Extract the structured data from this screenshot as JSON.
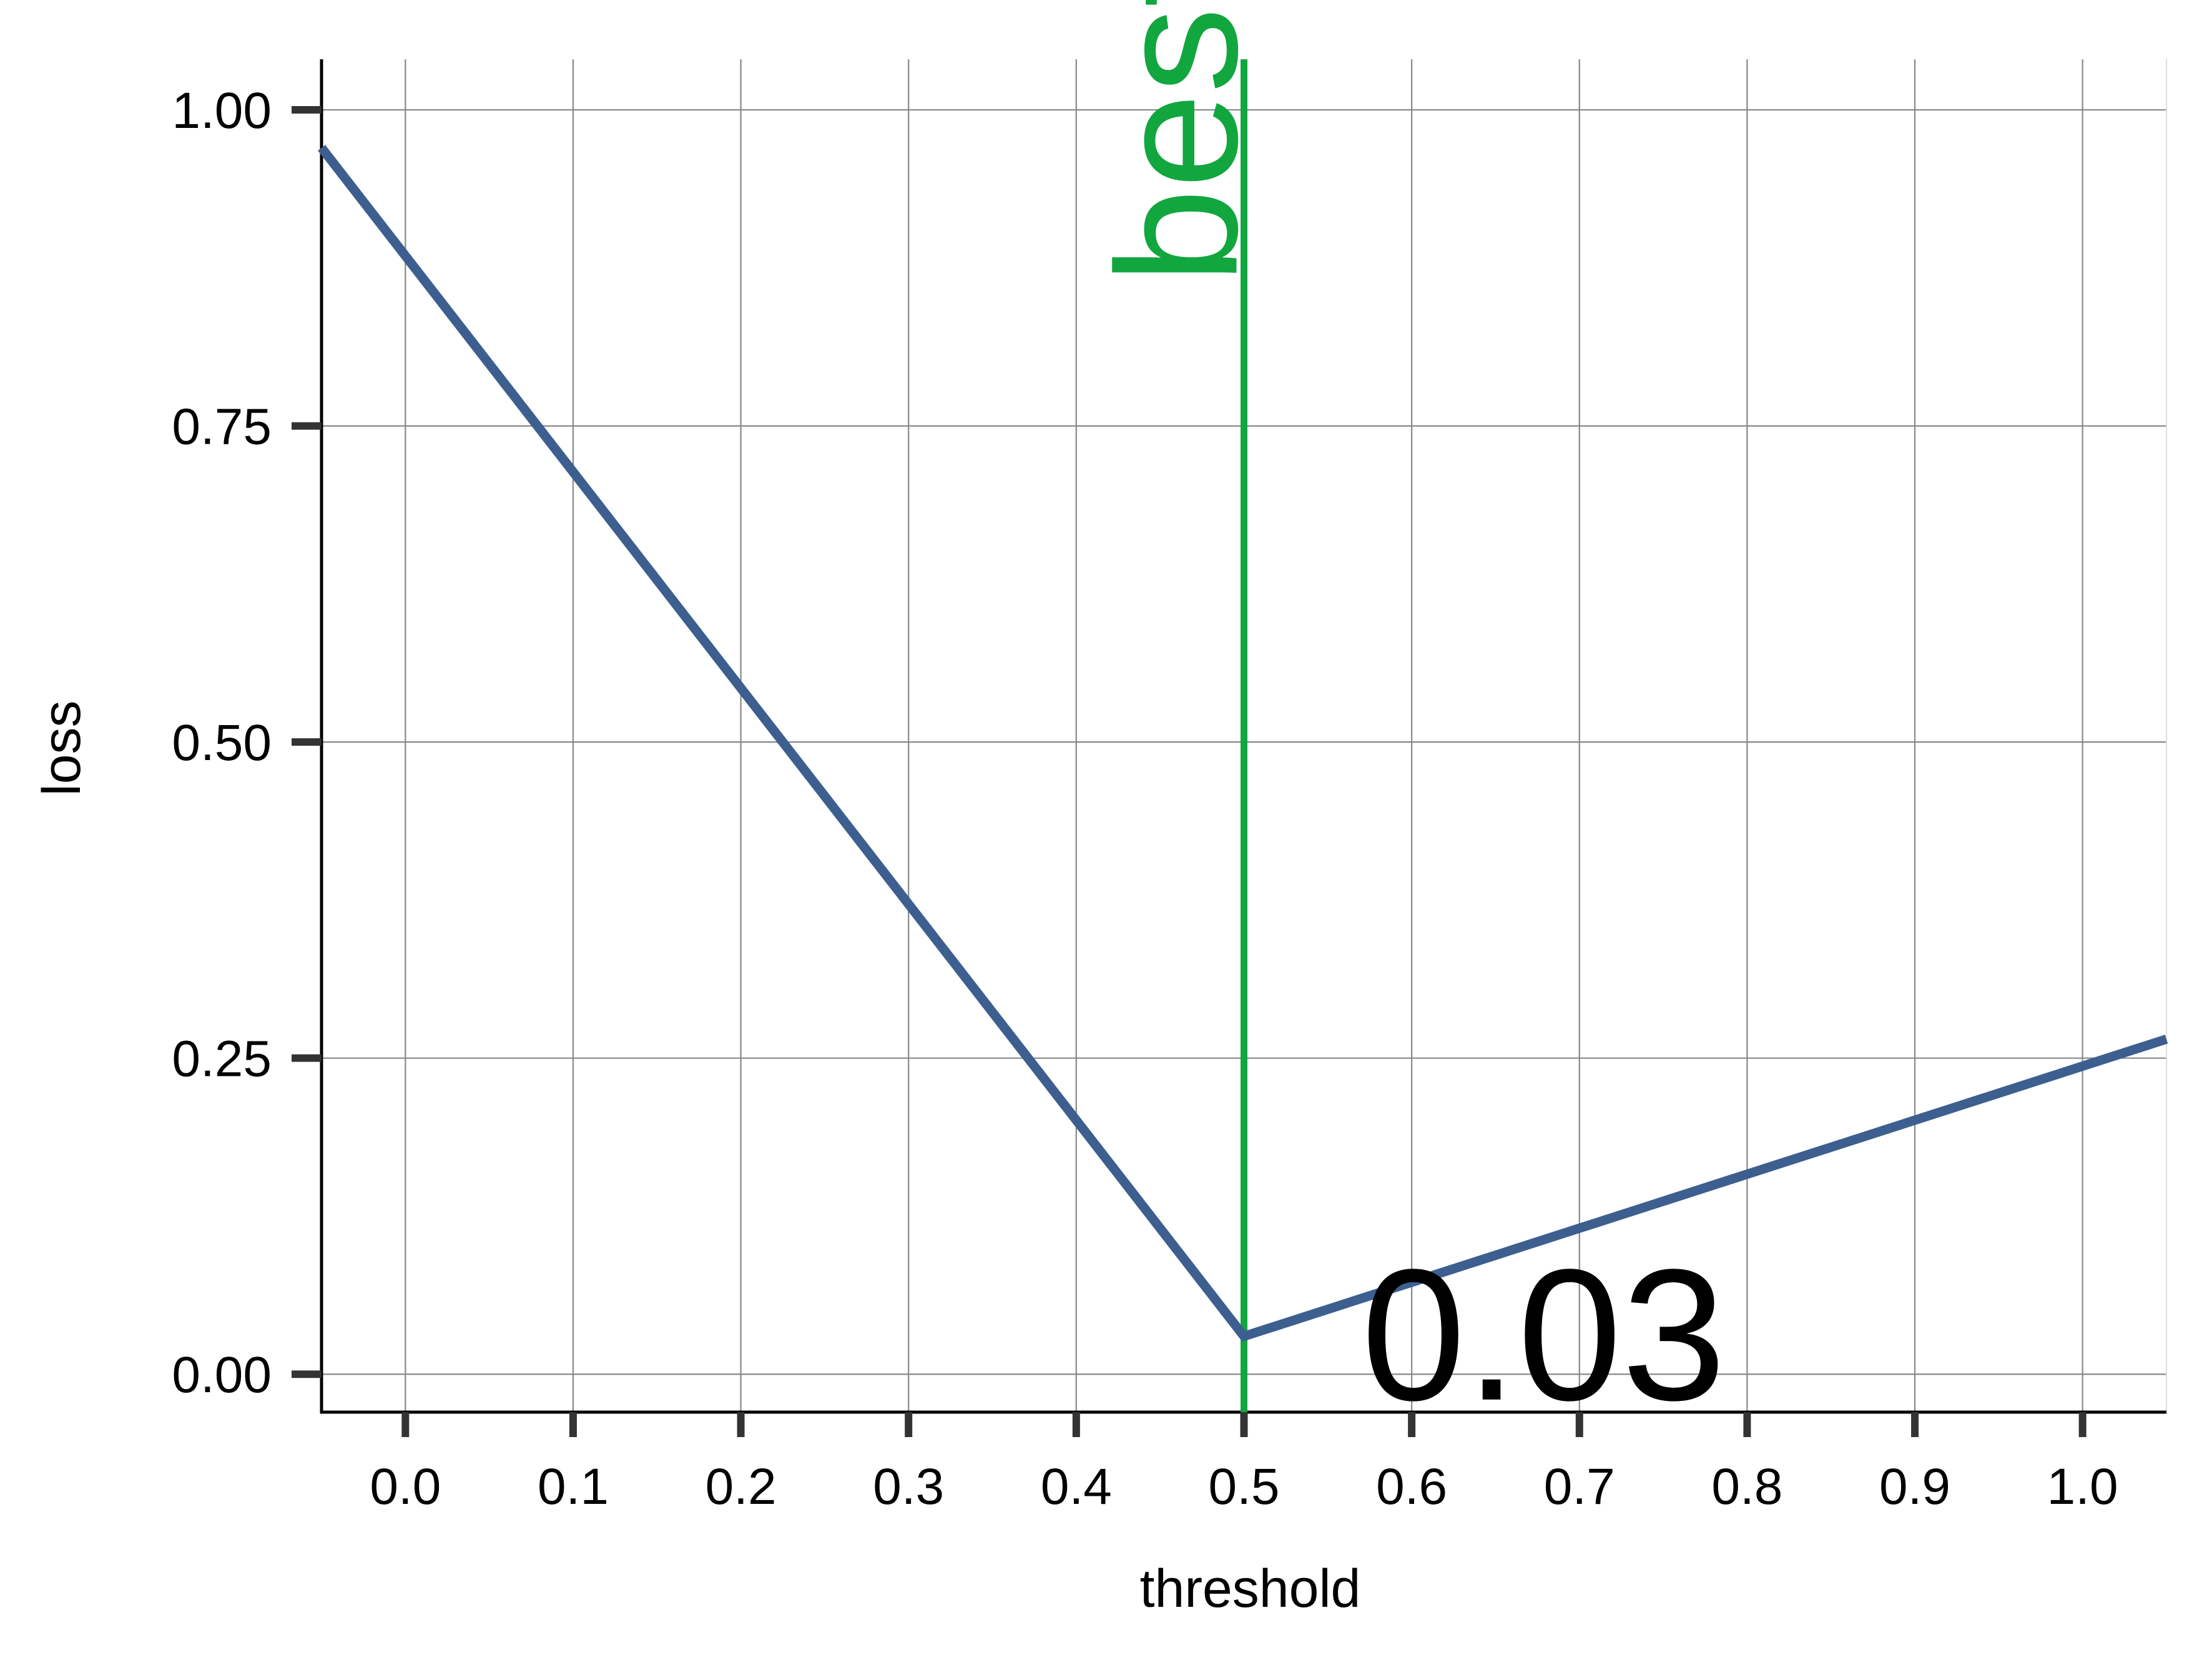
{
  "chart_data": {
    "type": "line",
    "xlabel": "threshold",
    "ylabel": "loss",
    "xlim": [
      -0.05,
      1.05
    ],
    "ylim": [
      -0.03,
      1.04
    ],
    "xticks": [
      0.0,
      0.1,
      0.2,
      0.3,
      0.4,
      0.5,
      0.6,
      0.7,
      0.8,
      0.9,
      1.0
    ],
    "xtick_labels": [
      "0.0",
      "0.1",
      "0.2",
      "0.3",
      "0.4",
      "0.5",
      "0.6",
      "0.7",
      "0.8",
      "0.9",
      "1.0"
    ],
    "yticks": [
      0.0,
      0.25,
      0.5,
      0.75,
      1.0
    ],
    "ytick_labels": [
      "0.00",
      "0.25",
      "0.50",
      "0.75",
      "1.00"
    ],
    "grid": true,
    "series": [
      {
        "x": [
          -0.05,
          0.5,
          0.5,
          1.05
        ],
        "y": [
          0.97,
          0.03,
          0.03,
          0.265
        ]
      }
    ],
    "vline": {
      "x": 0.5,
      "label": "best"
    },
    "annotation": {
      "x": 0.57,
      "y": -0.02,
      "text": "0.03"
    },
    "colors": {
      "line": "#3d5f8f",
      "vline": "#12a63f",
      "grid": "#888888",
      "axis": "#000000",
      "tick": "#333333"
    }
  }
}
